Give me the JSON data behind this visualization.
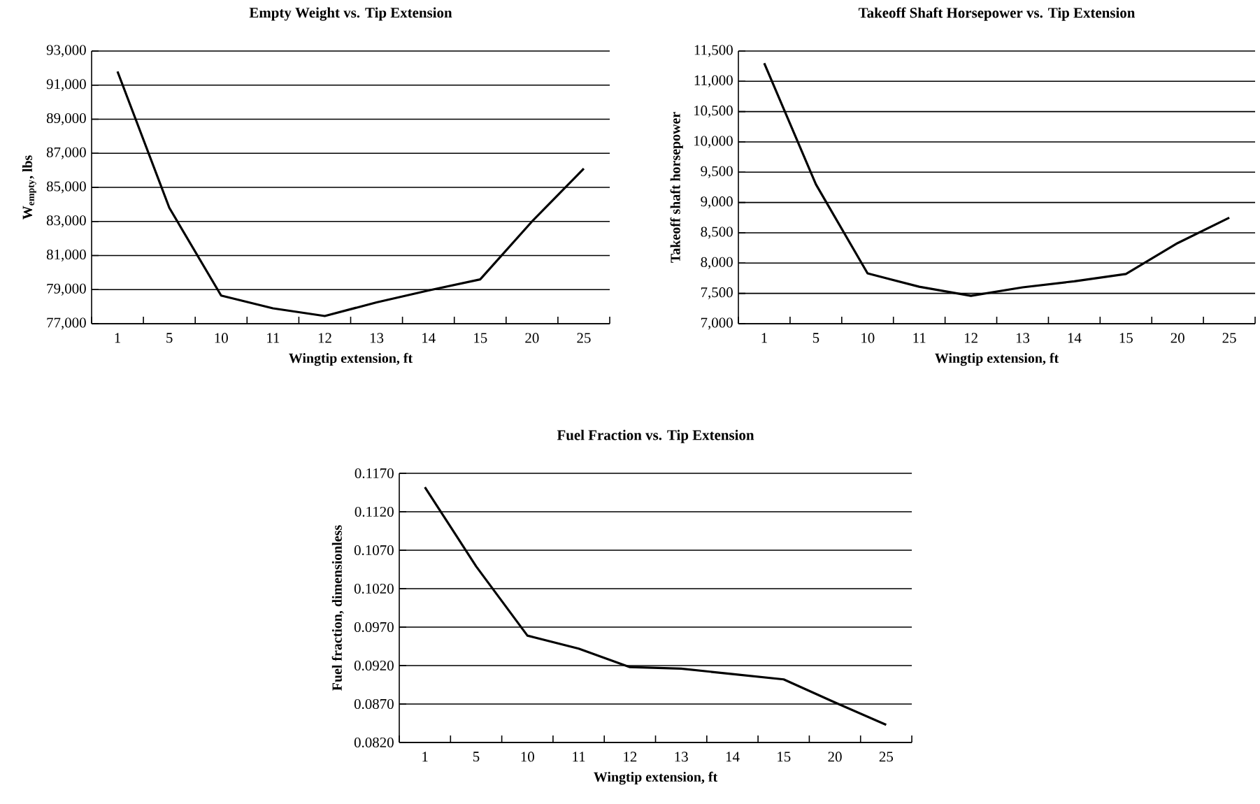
{
  "chart_data": [
    {
      "type": "line",
      "title": "Empty Weight vs. Tip Extension",
      "xlabel": "Wingtip extension, ft",
      "ylabel": "W$_{empty}$, lbs",
      "categories": [
        "1",
        "5",
        "10",
        "11",
        "12",
        "13",
        "14",
        "15",
        "20",
        "25"
      ],
      "values": [
        91800,
        83800,
        78650,
        77900,
        77450,
        78250,
        78950,
        79600,
        83000,
        86100
      ],
      "color": "#000000",
      "ylim": [
        77000,
        93000
      ],
      "yticks": [
        {
          "value": 77000,
          "label": "77,000"
        },
        {
          "value": 79000,
          "label": "79,000"
        },
        {
          "value": 81000,
          "label": "81,000"
        },
        {
          "value": 83000,
          "label": "83,000"
        },
        {
          "value": 85000,
          "label": "85,000"
        },
        {
          "value": 87000,
          "label": "87,000"
        },
        {
          "value": 89000,
          "label": "89,000"
        },
        {
          "value": 91000,
          "label": "91,000"
        },
        {
          "value": 93000,
          "label": "93,000"
        }
      ],
      "grid": "y",
      "line_style": "solid"
    },
    {
      "type": "line",
      "title": "Takeoff Shaft Horsepower vs. Tip Extension",
      "xlabel": "Wingtip extension, ft",
      "ylabel": "Takeoff shaft horsepower",
      "categories": [
        "1",
        "5",
        "10",
        "11",
        "12",
        "13",
        "14",
        "15",
        "20",
        "25"
      ],
      "values": [
        11300,
        9300,
        7830,
        7610,
        7460,
        7600,
        7700,
        7820,
        8330,
        8750
      ],
      "color": "#000000",
      "ylim": [
        7000,
        11500
      ],
      "yticks": [
        {
          "value": 7000,
          "label": "7,000"
        },
        {
          "value": 7500,
          "label": "7,500"
        },
        {
          "value": 8000,
          "label": "8,000"
        },
        {
          "value": 8500,
          "label": "8,500"
        },
        {
          "value": 9000,
          "label": "9,000"
        },
        {
          "value": 9500,
          "label": "9,500"
        },
        {
          "value": 10000,
          "label": "10,000"
        },
        {
          "value": 10500,
          "label": "10,500"
        },
        {
          "value": 11000,
          "label": "11,000"
        },
        {
          "value": 11500,
          "label": "11,500"
        }
      ],
      "grid": "y",
      "line_style": "solid"
    },
    {
      "type": "line",
      "title": "Fuel Fraction vs. Tip Extension",
      "xlabel": "Wingtip extension, ft",
      "ylabel": "Fuel fraction, dimensionless",
      "categories": [
        "1",
        "5",
        "10",
        "11",
        "12",
        "13",
        "14",
        "15",
        "20",
        "25"
      ],
      "values": [
        0.1152,
        0.1049,
        0.0959,
        0.0942,
        0.0918,
        0.0916,
        0.0909,
        0.0902,
        0.0872,
        0.0843
      ],
      "color": "#000000",
      "ylim": [
        0.082,
        0.117
      ],
      "yticks": [
        {
          "value": 0.082,
          "label": "0.0820"
        },
        {
          "value": 0.087,
          "label": "0.0870"
        },
        {
          "value": 0.092,
          "label": "0.0920"
        },
        {
          "value": 0.097,
          "label": "0.0970"
        },
        {
          "value": 0.102,
          "label": "0.1020"
        },
        {
          "value": 0.107,
          "label": "0.1070"
        },
        {
          "value": 0.112,
          "label": "0.1120"
        },
        {
          "value": 0.117,
          "label": "0.1170"
        }
      ],
      "grid": "y",
      "line_style": "solid"
    }
  ]
}
